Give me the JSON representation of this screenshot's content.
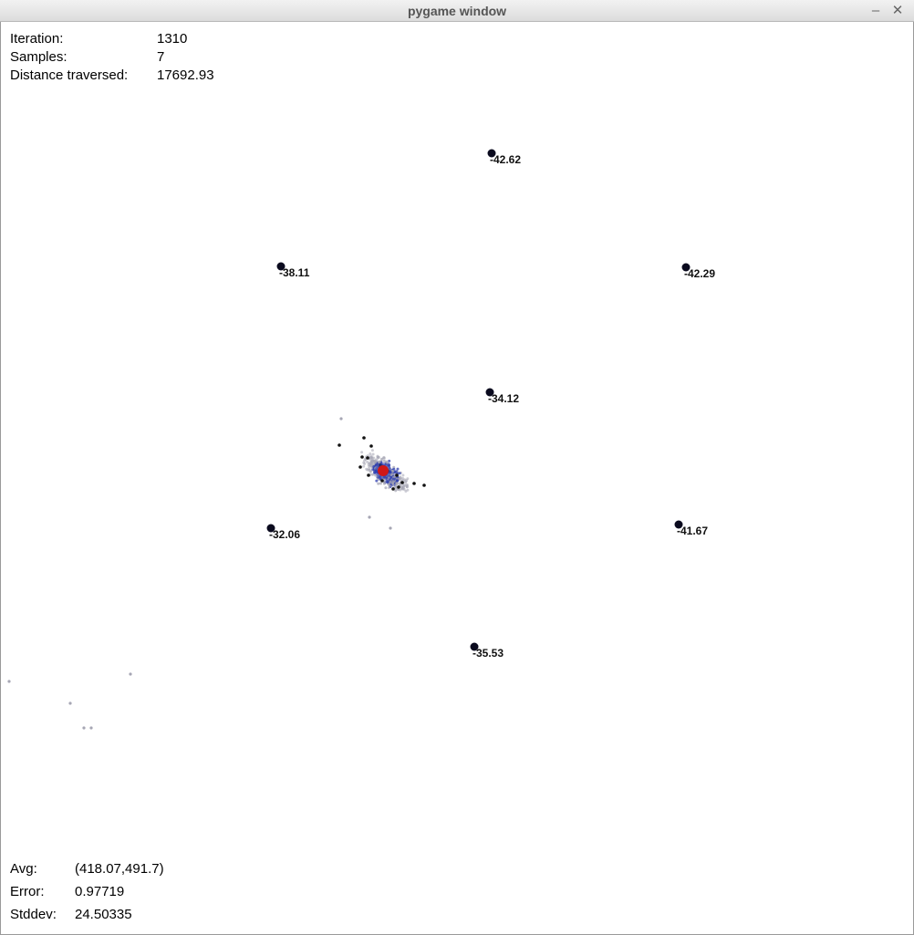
{
  "window": {
    "title": "pygame window"
  },
  "top_stats": {
    "iteration_label": "Iteration:",
    "iteration_value": "1310",
    "samples_label": "Samples:",
    "samples_value": "7",
    "distance_label": "Distance traversed:",
    "distance_value": "17692.93"
  },
  "bottom_stats": {
    "avg_label": "Avg:",
    "avg_value": "(418.07,491.7)",
    "error_label": "Error:",
    "error_value": "0.97719",
    "stddev_label": "Stddev:",
    "stddev_value": "24.50335"
  },
  "markers": [
    "-42.62",
    "-38.11",
    "-42.29",
    "-34.12",
    "-32.06",
    "-41.67",
    "-35.53"
  ],
  "colors": {
    "marker": "#0a0a1e",
    "particle_grey": "#a6a6b4",
    "particle_blue": "#2f3fb0",
    "estimate_red": "#d01818",
    "sample_black": "#111111"
  }
}
